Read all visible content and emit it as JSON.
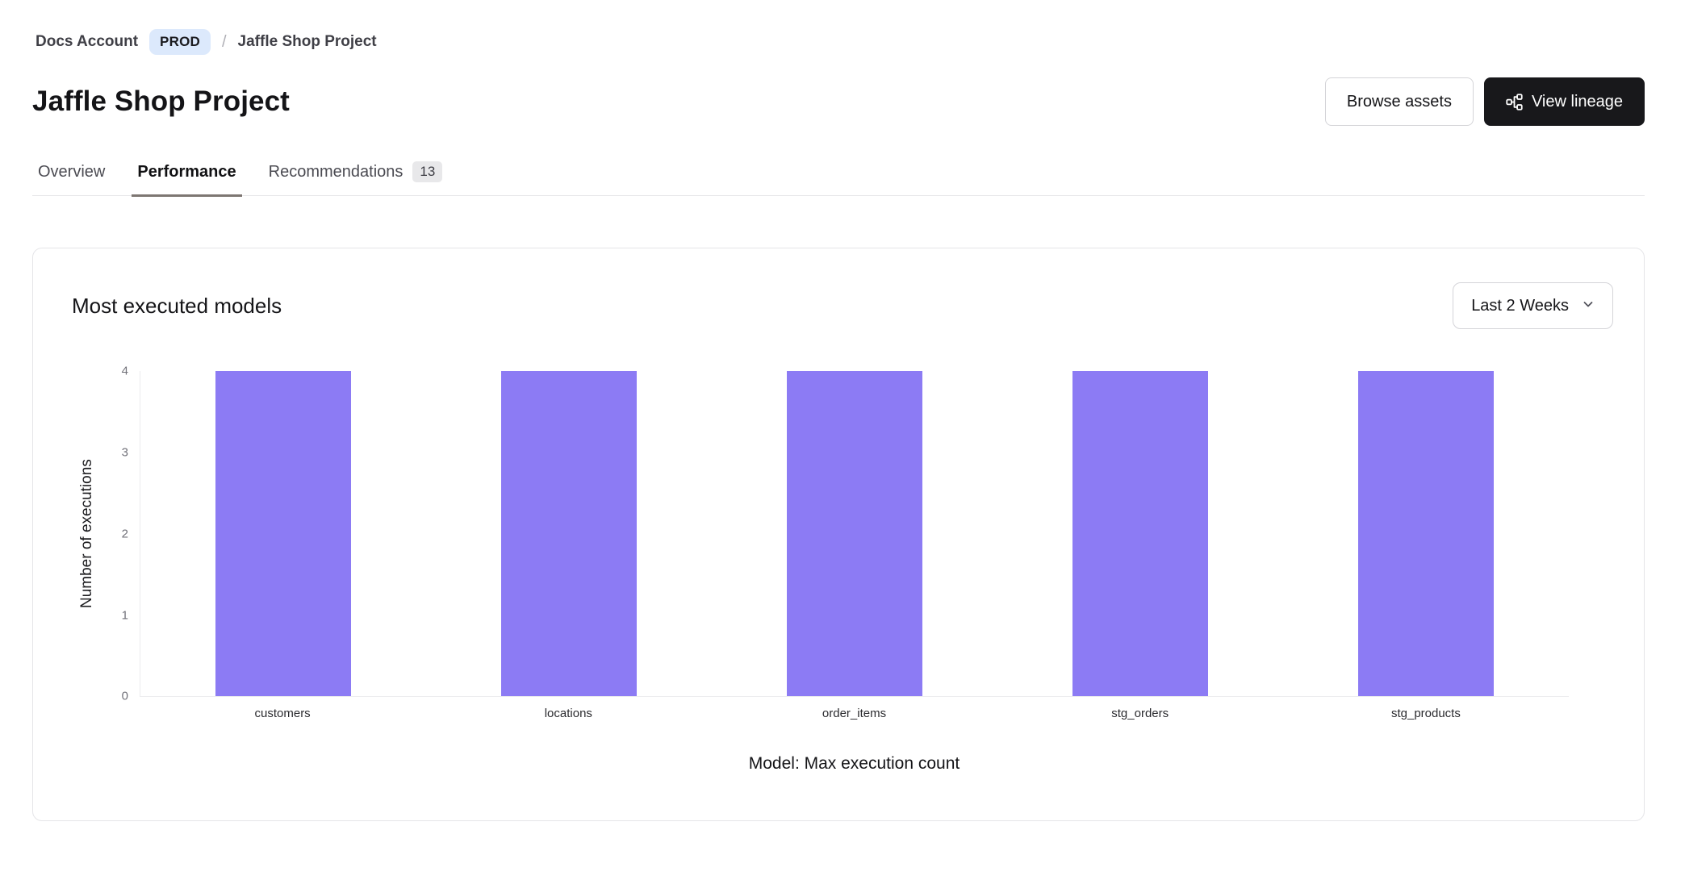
{
  "breadcrumb": {
    "account": "Docs Account",
    "env_badge": "PROD",
    "separator": "/",
    "project": "Jaffle Shop Project"
  },
  "header": {
    "title": "Jaffle Shop Project",
    "browse_assets_label": "Browse assets",
    "view_lineage_label": "View lineage"
  },
  "tabs": [
    {
      "label": "Overview",
      "active": false
    },
    {
      "label": "Performance",
      "active": true
    },
    {
      "label": "Recommendations",
      "active": false,
      "badge": "13"
    }
  ],
  "card": {
    "title": "Most executed models",
    "range_selector": "Last 2 Weeks"
  },
  "chart_data": {
    "type": "bar",
    "categories": [
      "customers",
      "locations",
      "order_items",
      "stg_orders",
      "stg_products"
    ],
    "values": [
      4,
      4,
      4,
      4,
      4
    ],
    "title": "Most executed models",
    "xlabel": "Model: Max execution count",
    "ylabel": "Number of executions",
    "ylim": [
      0,
      4
    ],
    "yticks": [
      0,
      1,
      2,
      3,
      4
    ],
    "bar_color": "#8c7bf4",
    "grid": false,
    "legend": false
  },
  "colors": {
    "bar": "#8c7bf4",
    "env_badge_bg": "#dce9fc",
    "primary_button_bg": "#18181b",
    "tab_underline": "#7d7672",
    "axis_line": "#ececee"
  }
}
